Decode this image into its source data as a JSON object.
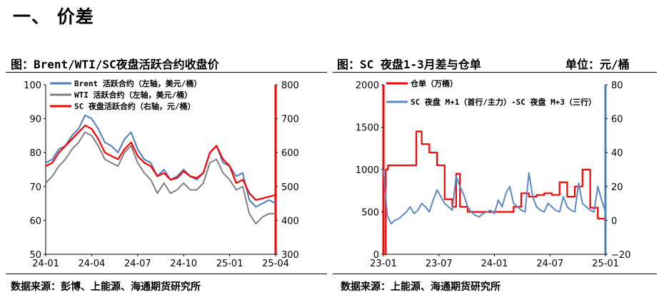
{
  "section_heading": "一、 价差",
  "left_panel": {
    "title": "图：Brent/WTI/SC夜盘活跃合约收盘价",
    "source": "数据来源：彭博、上能源、海通期货研究所"
  },
  "right_panel": {
    "title": "图：SC 夜盘1-3月差与仓单",
    "unit": "单位：元/桶",
    "source": "数据来源：上能源、海通期货研究所"
  },
  "colors": {
    "brent": "#4a7ebf",
    "wti": "#808080",
    "sc": "#ff0000",
    "spread": "#5b88c8",
    "warehouse": "#ff0000"
  },
  "chart_data": [
    {
      "type": "line",
      "x_ticks": [
        "24-01",
        "24-04",
        "24-07",
        "24-10",
        "25-01",
        "25-04"
      ],
      "y_left": {
        "ticks": [
          "50",
          "60",
          "70",
          "80",
          "90",
          "100"
        ],
        "range": [
          50,
          100
        ]
      },
      "y_right": {
        "ticks": [
          "300",
          "400",
          "500",
          "600",
          "700",
          "800"
        ],
        "range": [
          300,
          800
        ]
      },
      "legend": [
        "Brent 活跃合约（左轴，美元/桶）",
        "WTI 活跃合约（左轴，美元/桶）",
        "SC 夜盘活跃合约（右轴，元/桶）"
      ],
      "legend_position": "top-left",
      "x_range": [
        0,
        17.5
      ],
      "series": [
        {
          "name": "Brent 活跃合约（左轴，美元/桶）",
          "axis": "left",
          "x": [
            0,
            0.5,
            1,
            1.5,
            2,
            2.5,
            3,
            3.5,
            4,
            4.5,
            5,
            5.5,
            6,
            6.5,
            7,
            7.5,
            8,
            8.5,
            9,
            9.5,
            10,
            10.5,
            11,
            11.5,
            12,
            12.5,
            13,
            13.5,
            14,
            14.5,
            15,
            15.5,
            16,
            16.5,
            17,
            17.5
          ],
          "y": [
            77,
            78,
            81,
            82,
            85,
            87,
            91,
            90,
            87,
            83,
            82,
            80,
            84,
            86,
            81,
            78,
            77,
            73,
            75,
            72,
            73,
            75,
            73,
            72,
            74,
            80,
            82,
            77,
            76,
            73,
            74,
            66,
            64,
            65,
            66,
            65
          ]
        },
        {
          "name": "WTI 活跃合约（左轴，美元/桶）",
          "axis": "left",
          "x": [
            0,
            0.5,
            1,
            1.5,
            2,
            2.5,
            3,
            3.5,
            4,
            4.5,
            5,
            5.5,
            6,
            6.5,
            7,
            7.5,
            8,
            8.5,
            9,
            9.5,
            10,
            10.5,
            11,
            11.5,
            12,
            12.5,
            13,
            13.5,
            14,
            14.5,
            15,
            15.5,
            16,
            16.5,
            17,
            17.5
          ],
          "y": [
            71,
            73,
            76,
            78,
            81,
            83,
            86,
            85,
            82,
            78,
            77,
            76,
            80,
            82,
            77,
            74,
            72,
            68,
            71,
            68,
            69,
            71,
            69,
            69,
            71,
            77,
            78,
            74,
            72,
            69,
            70,
            62,
            59,
            61,
            62,
            62
          ]
        },
        {
          "name": "SC 夜盘活跃合约（右轴，元/桶）",
          "axis": "right",
          "x": [
            0,
            0.5,
            1,
            1.5,
            2,
            2.5,
            3,
            3.5,
            4,
            4.5,
            5,
            5.5,
            6,
            6.5,
            7,
            7.5,
            8,
            8.5,
            9,
            9.5,
            10,
            10.5,
            11,
            11.5,
            12,
            12.5,
            13,
            13.5,
            14,
            14.5,
            15,
            15.5,
            16,
            16.5,
            17,
            17.5
          ],
          "y": [
            560,
            570,
            600,
            620,
            640,
            660,
            680,
            670,
            640,
            600,
            590,
            580,
            610,
            630,
            590,
            570,
            560,
            530,
            540,
            520,
            525,
            545,
            530,
            525,
            540,
            600,
            620,
            580,
            560,
            510,
            520,
            480,
            460,
            465,
            470,
            475
          ]
        }
      ]
    },
    {
      "type": "line",
      "x_ticks": [
        "23-01",
        "23-07",
        "24-01",
        "24-07",
        "25-01"
      ],
      "y_left": {
        "ticks": [
          "0",
          "500",
          "1000",
          "1500",
          "2000"
        ],
        "range": [
          0,
          2000
        ]
      },
      "y_right": {
        "ticks": [
          "−20",
          "0",
          "20",
          "40",
          "60",
          "80"
        ],
        "range": [
          -20,
          80
        ]
      },
      "legend": [
        "仓单（万桶）",
        "SC 夜盘 M+1（首行/主力）-SC 夜盘 M+3（三行）"
      ],
      "legend_position": "top-left",
      "x_range": [
        0,
        29
      ],
      "series": [
        {
          "name": "仓单（万桶）",
          "axis": "left",
          "x": [
            0,
            0.3,
            0.6,
            2,
            3,
            4,
            4.3,
            5,
            6,
            7,
            8,
            9,
            9.5,
            10,
            11,
            12,
            13,
            14,
            15,
            16,
            17,
            18,
            19,
            20,
            21,
            22,
            23,
            24,
            25,
            26,
            27,
            28,
            29
          ],
          "y": [
            0,
            1000,
            1050,
            1050,
            1050,
            1050,
            1450,
            1300,
            1200,
            1050,
            650,
            560,
            950,
            560,
            500,
            500,
            500,
            500,
            500,
            500,
            560,
            720,
            680,
            700,
            720,
            700,
            850,
            680,
            800,
            1000,
            550,
            420,
            420
          ]
        },
        {
          "name": "SC 夜盘 M+1（首行/主力）-SC 夜盘 M+3（三行）",
          "axis": "right",
          "x": [
            0,
            0.5,
            1,
            1.5,
            2,
            2.5,
            3,
            3.5,
            4,
            4.5,
            5,
            5.5,
            6,
            6.5,
            7,
            7.5,
            8,
            8.5,
            9,
            9.5,
            10,
            10.5,
            11,
            11.5,
            12,
            12.5,
            13,
            13.5,
            14,
            14.5,
            15,
            15.5,
            16,
            16.5,
            17,
            17.5,
            18,
            18.5,
            19,
            19.5,
            20,
            20.5,
            21,
            21.5,
            22,
            22.5,
            23,
            23.5,
            24,
            24.5,
            25,
            25.5,
            26,
            26.5,
            27,
            27.5,
            28,
            28.5,
            29
          ],
          "y": [
            30,
            3,
            -2,
            0,
            1,
            3,
            5,
            8,
            4,
            6,
            10,
            8,
            5,
            12,
            18,
            14,
            10,
            8,
            6,
            26,
            20,
            15,
            8,
            5,
            3,
            2,
            4,
            5,
            6,
            4,
            12,
            8,
            16,
            20,
            10,
            8,
            6,
            5,
            28,
            14,
            8,
            6,
            5,
            10,
            8,
            6,
            5,
            14,
            8,
            6,
            5,
            22,
            10,
            8,
            6,
            5,
            20,
            12,
            5
          ]
        }
      ]
    }
  ]
}
